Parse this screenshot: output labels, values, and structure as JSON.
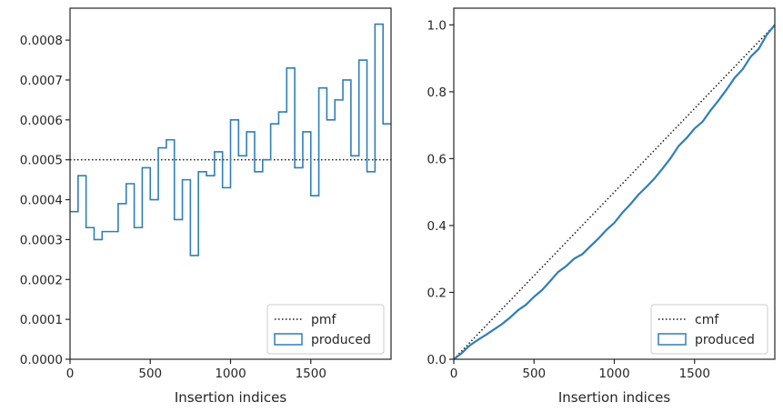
{
  "colors": {
    "series": "#2f7fb5",
    "reference": "#1a1a1a",
    "axes": "#262626"
  },
  "chart_data": [
    {
      "type": "histogram-step",
      "xlabel": "Insertion indices",
      "ylabel": "",
      "xlim": [
        0,
        2000
      ],
      "ylim": [
        0,
        0.00088
      ],
      "x_ticks": [
        0,
        500,
        1000,
        1500
      ],
      "x_tick_labels": [
        "0",
        "500",
        "1000",
        "1500"
      ],
      "y_ticks": [
        0,
        0.0001,
        0.0002,
        0.0003,
        0.0004,
        0.0005,
        0.0006,
        0.0007,
        0.0008
      ],
      "y_tick_labels": [
        "0.0000",
        "0.0001",
        "0.0002",
        "0.0003",
        "0.0004",
        "0.0005",
        "0.0006",
        "0.0007",
        "0.0008"
      ],
      "bin_width": 50,
      "bin_edges_start": 0,
      "series": [
        {
          "name": "produced",
          "style": "step",
          "values": [
            0.00037,
            0.00046,
            0.00033,
            0.0003,
            0.00032,
            0.00032,
            0.00039,
            0.00044,
            0.00033,
            0.00048,
            0.0004,
            0.00053,
            0.00055,
            0.00035,
            0.00045,
            0.00026,
            0.00047,
            0.00046,
            0.00052,
            0.00043,
            0.0006,
            0.00051,
            0.00057,
            0.00047,
            0.0005,
            0.00059,
            0.00062,
            0.00073,
            0.00048,
            0.00057,
            0.00041,
            0.00068,
            0.0006,
            0.00065,
            0.0007,
            0.00051,
            0.00075,
            0.00047,
            0.00084,
            0.00059
          ]
        },
        {
          "name": "pmf",
          "style": "dotted",
          "values": [
            0.0005
          ]
        }
      ],
      "legend": {
        "position": "lower-right",
        "entries": [
          "pmf",
          "produced"
        ]
      }
    },
    {
      "type": "line",
      "xlabel": "Insertion indices",
      "ylabel": "",
      "xlim": [
        0,
        2000
      ],
      "ylim": [
        0,
        1.05
      ],
      "x_ticks": [
        0,
        500,
        1000,
        1500
      ],
      "x_tick_labels": [
        "0",
        "500",
        "1000",
        "1500"
      ],
      "y_ticks": [
        0,
        0.2,
        0.4,
        0.6,
        0.8,
        1.0
      ],
      "y_tick_labels": [
        "0.0",
        "0.2",
        "0.4",
        "0.6",
        "0.8",
        "1.0"
      ],
      "series": [
        {
          "name": "cmf",
          "style": "dotted",
          "x": [
            0,
            2000
          ],
          "y": [
            0,
            1.0
          ]
        },
        {
          "name": "produced",
          "style": "solid",
          "x": [
            0,
            50,
            100,
            150,
            200,
            250,
            300,
            350,
            400,
            450,
            500,
            550,
            600,
            650,
            700,
            750,
            800,
            850,
            900,
            950,
            1000,
            1050,
            1100,
            1150,
            1200,
            1250,
            1300,
            1350,
            1400,
            1450,
            1500,
            1550,
            1600,
            1650,
            1700,
            1750,
            1800,
            1850,
            1900,
            1950,
            2000
          ],
          "y": [
            0,
            0.0185,
            0.0415,
            0.058,
            0.073,
            0.089,
            0.105,
            0.1245,
            0.1465,
            0.163,
            0.187,
            0.207,
            0.2335,
            0.261,
            0.2785,
            0.301,
            0.314,
            0.3375,
            0.3605,
            0.3865,
            0.408,
            0.438,
            0.4635,
            0.492,
            0.5155,
            0.5405,
            0.57,
            0.601,
            0.6375,
            0.6615,
            0.69,
            0.7105,
            0.7445,
            0.7745,
            0.807,
            0.842,
            0.8675,
            0.905,
            0.9285,
            0.9705,
            1.0
          ]
        }
      ],
      "legend": {
        "position": "lower-right",
        "entries": [
          "cmf",
          "produced"
        ]
      }
    }
  ]
}
